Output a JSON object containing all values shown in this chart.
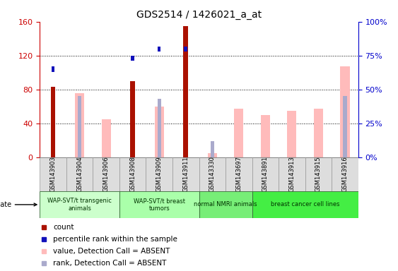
{
  "title": "GDS2514 / 1426021_a_at",
  "samples": [
    "GSM143903",
    "GSM143904",
    "GSM143906",
    "GSM143908",
    "GSM143909",
    "GSM143911",
    "GSM143330",
    "GSM143697",
    "GSM143891",
    "GSM143913",
    "GSM143915",
    "GSM143916"
  ],
  "count": [
    83,
    0,
    0,
    90,
    0,
    155,
    0,
    0,
    0,
    0,
    0,
    0
  ],
  "percentile_rank": [
    65,
    0,
    0,
    73,
    80,
    80,
    0,
    0,
    0,
    0,
    0,
    0
  ],
  "value_absent": [
    0,
    76,
    45,
    0,
    60,
    0,
    5,
    57,
    50,
    55,
    57,
    107
  ],
  "rank_absent": [
    0,
    45,
    0,
    0,
    43,
    0,
    12,
    0,
    0,
    0,
    0,
    45
  ],
  "groups": [
    {
      "label": "WAP-SVT/t transgenic\nanimals",
      "start": 0,
      "end": 3,
      "color": "#ccffcc"
    },
    {
      "label": "WAP-SVT/t breast\ntumors",
      "start": 3,
      "end": 6,
      "color": "#aaffaa"
    },
    {
      "label": "normal NMRI animals",
      "start": 6,
      "end": 8,
      "color": "#77ee77"
    },
    {
      "label": "breast cancer cell lines",
      "start": 8,
      "end": 12,
      "color": "#44ee44"
    }
  ],
  "ylim_left": [
    0,
    160
  ],
  "ylim_right": [
    0,
    100
  ],
  "left_ticks": [
    0,
    40,
    80,
    120,
    160
  ],
  "right_ticks": [
    0,
    25,
    50,
    75,
    100
  ],
  "left_color": "#cc0000",
  "right_color": "#0000cc",
  "red": "#aa1100",
  "pink": "#ffbbbb",
  "blue": "#1111bb",
  "lightblue": "#aaaacc",
  "background_color": "#ffffff"
}
